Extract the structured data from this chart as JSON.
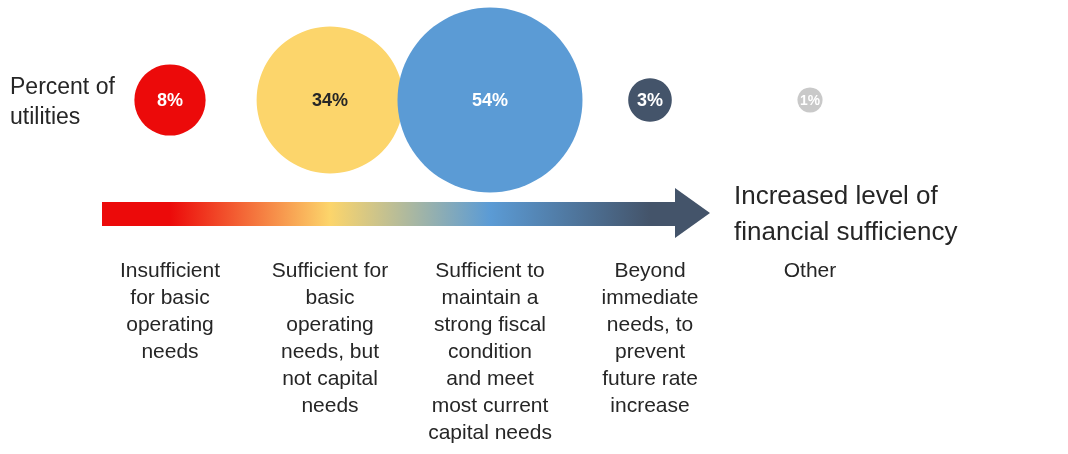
{
  "chart_data": {
    "type": "other",
    "ylabel": "Percent of utilities",
    "xlabel": "Increased level of financial sufficiency",
    "categories": [
      "Insufficient for basic operating needs",
      "Sufficient for basic operating needs, but not capital needs",
      "Sufficient to maintain a strong fiscal condition and meet most current capital needs",
      "Beyond immediate needs, to prevent future rate increase",
      "Other"
    ],
    "values": [
      8,
      34,
      54,
      3,
      1
    ],
    "value_labels": [
      "8%",
      "34%",
      "54%",
      "3%",
      "1%"
    ],
    "colors": [
      "#ec0a0a",
      "#fcd56b",
      "#5b9bd5",
      "#44546a",
      "#c9c9c9"
    ]
  }
}
